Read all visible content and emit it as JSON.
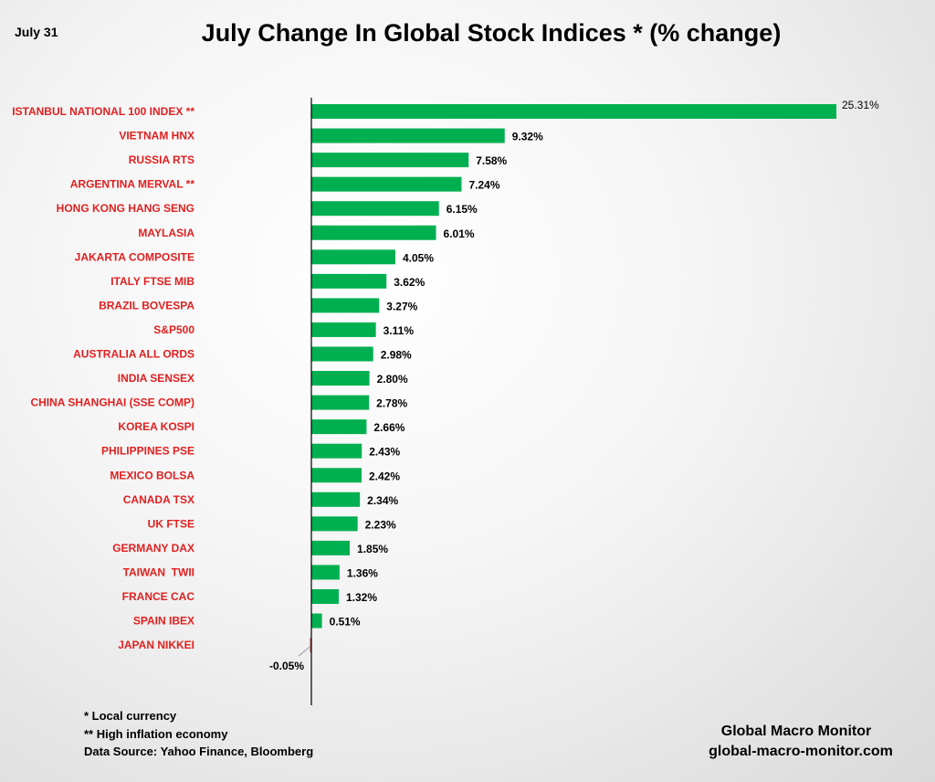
{
  "chart_data": {
    "type": "bar",
    "orientation": "horizontal",
    "title": "July Change In Global Stock Indices * (% change)",
    "date_label": "July 31",
    "categories": [
      "ISTANBUL NATIONAL 100 INDEX **",
      "VIETNAM HNX",
      "RUSSIA RTS",
      "ARGENTINA MERVAL **",
      "HONG KONG HANG SENG",
      "MAYLASIA",
      "JAKARTA COMPOSITE",
      "ITALY FTSE MIB",
      "BRAZIL BOVESPA",
      "S&P500",
      "AUSTRALIA ALL ORDS",
      "INDIA SENSEX",
      "CHINA SHANGHAI (SSE COMP)",
      "KOREA KOSPI",
      "PHILIPPINES PSE",
      "MEXICO BOLSA",
      "CANADA TSX",
      "UK FTSE",
      "GERMANY DAX",
      "TAIWAN  TWII",
      "FRANCE CAC",
      "SPAIN IBEX",
      "JAPAN NIKKEI"
    ],
    "values": [
      25.31,
      9.32,
      7.58,
      7.24,
      6.15,
      6.01,
      4.05,
      3.62,
      3.27,
      3.11,
      2.98,
      2.8,
      2.78,
      2.66,
      2.43,
      2.42,
      2.34,
      2.23,
      1.85,
      1.36,
      1.32,
      0.51,
      -0.05
    ],
    "value_labels": [
      "25.31%",
      "9.32%",
      "7.58%",
      "7.24%",
      "6.15%",
      "6.01%",
      "4.05%",
      "3.62%",
      "3.27%",
      "3.11%",
      "2.98%",
      "2.80%",
      "2.78%",
      "2.66%",
      "2.43%",
      "2.42%",
      "2.34%",
      "2.23%",
      "1.85%",
      "1.36%",
      "1.32%",
      "0.51%",
      "-0.05%"
    ],
    "unit": "%",
    "colors": {
      "bar_positive": "#00b050",
      "bar_negative": "#c0504d",
      "category_text": "#e02020",
      "value_text": "#000000"
    }
  },
  "notes": {
    "local_currency": "* Local currency",
    "high_inflation": "**  High inflation economy",
    "data_source": "Data Source:  Yahoo Finance, Bloomberg"
  },
  "branding": {
    "name": "Global Macro Monitor",
    "site": "global-macro-monitor.com"
  }
}
